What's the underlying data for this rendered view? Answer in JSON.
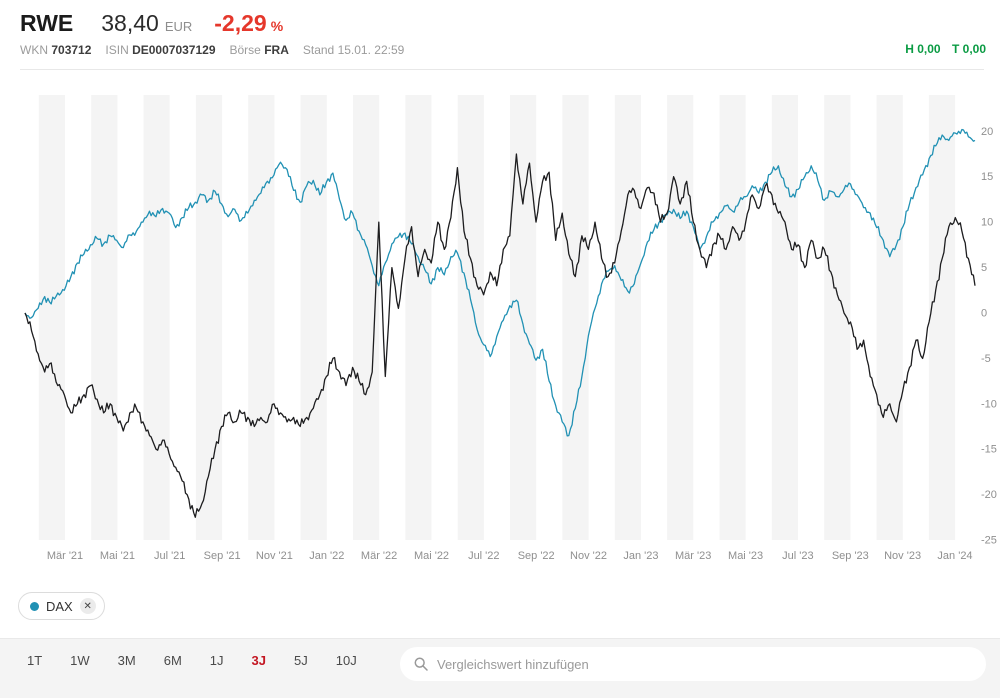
{
  "header": {
    "symbol": "RWE",
    "price": "38,40",
    "currency": "EUR",
    "change_percent": "-2,29",
    "percent_sign": "%",
    "wkn_label": "WKN",
    "wkn": "703712",
    "isin_label": "ISIN",
    "isin": "DE0007037129",
    "boerse_label": "Börse",
    "boerse": "FRA",
    "stand": "Stand 15.01. 22:59",
    "high_label": "H",
    "high": "0,00",
    "low_label": "T",
    "low": "0,00"
  },
  "colors": {
    "rwe_line": "#1d1d1f",
    "dax_line": "#2191b4",
    "change_red": "#e5372b",
    "active_range_red": "#c31622",
    "high_low_green": "#0a9b43",
    "stripe": "#f4f4f4",
    "tick_gray": "#8f8f8f"
  },
  "legend": {
    "dax_label": "DAX",
    "remove_glyph": "✕"
  },
  "toolbar": {
    "ranges": [
      "1T",
      "1W",
      "3M",
      "6M",
      "1J",
      "3J",
      "5J",
      "10J"
    ],
    "active_range": "3J",
    "search_placeholder": "Vergleichswert hinzufügen"
  },
  "chart_data": {
    "type": "line",
    "ylabel": "%",
    "ylim": [
      -25,
      24
    ],
    "yticks": [
      20,
      15,
      10,
      5,
      0,
      -5,
      -10,
      -15,
      -20,
      -25
    ],
    "grid": "vertical-month-stripes",
    "legend_position": "bottom-left-chip",
    "x_range": "mid-Jan 2021 to mid-Jan 2024",
    "x_tick_labels": [
      "Mär '21",
      "Mai '21",
      "Jul '21",
      "Sep '21",
      "Nov '21",
      "Jan '22",
      "Mär '22",
      "Mai '22",
      "Jul '22",
      "Sep '22",
      "Nov '22",
      "Jan '23",
      "Mär '23",
      "Mai '23",
      "Jul '23",
      "Sep '23",
      "Nov '23",
      "Jan '24"
    ],
    "series": [
      {
        "name": "RWE",
        "color": "#1d1d1f",
        "unit": "percent",
        "values": [
          0,
          -2.0,
          -4.5,
          -6.5,
          -5.5,
          -8.0,
          -9.0,
          -11.0,
          -10.0,
          -9.0,
          -8.0,
          -9.5,
          -11.0,
          -10.0,
          -11.5,
          -13.0,
          -11.0,
          -10.5,
          -12.0,
          -13.5,
          -15.0,
          -14.0,
          -15.5,
          -17.0,
          -18.5,
          -20.5,
          -22.5,
          -21.0,
          -18.0,
          -15.0,
          -12.5,
          -11.0,
          -12.0,
          -11.0,
          -11.5,
          -12.5,
          -11.5,
          -12.0,
          -10.0,
          -11.0,
          -12.0,
          -11.5,
          -12.5,
          -11.5,
          -10.5,
          -9.0,
          -7.0,
          -5.0,
          -6.5,
          -8.0,
          -6.0,
          -7.5,
          -9.0,
          -6.5,
          10.0,
          -7.0,
          5.0,
          0.5,
          6.0,
          9.5,
          4.0,
          7.0,
          5.5,
          10.0,
          7.0,
          10.5,
          16.0,
          9.0,
          6.0,
          3.0,
          2.0,
          4.5,
          3.0,
          7.0,
          8.5,
          17.5,
          12.0,
          16.5,
          10.0,
          14.5,
          15.5,
          8.0,
          11.0,
          6.5,
          4.0,
          8.5,
          7.0,
          10.0,
          6.0,
          4.0,
          5.5,
          9.0,
          13.0,
          13.5,
          11.5,
          13.8,
          13.2,
          10.0,
          11.0,
          15.0,
          12.0,
          14.5,
          10.0,
          7.0,
          5.0,
          7.5,
          8.5,
          7.0,
          9.5,
          8.0,
          10.0,
          13.0,
          11.5,
          14.0,
          13.0,
          11.0,
          10.0,
          7.0,
          7.5,
          5.0,
          8.0,
          6.0,
          7.0,
          4.5,
          2.0,
          0.0,
          -1.0,
          -4.0,
          -3.0,
          -7.0,
          -9.0,
          -11.5,
          -10.0,
          -12.0,
          -8.5,
          -6.0,
          -3.0,
          -5.0,
          -1.0,
          2.5,
          6.0,
          9.5,
          10.5,
          9.0,
          6.0,
          3.0
        ]
      },
      {
        "name": "DAX",
        "color": "#2191b4",
        "unit": "percent",
        "values": [
          0,
          -0.5,
          0.5,
          1.8,
          1.0,
          2.2,
          2.5,
          4.0,
          5.5,
          6.5,
          7.5,
          8.2,
          7.6,
          8.5,
          8.0,
          7.2,
          8.6,
          9.0,
          10.0,
          11.2,
          10.6,
          11.5,
          11.0,
          9.4,
          10.5,
          11.6,
          12.2,
          13.0,
          12.4,
          13.4,
          12.0,
          10.6,
          11.4,
          10.2,
          11.0,
          12.4,
          13.2,
          14.5,
          15.2,
          16.6,
          15.8,
          13.5,
          12.2,
          14.0,
          14.6,
          13.0,
          14.4,
          15.4,
          12.5,
          10.2,
          11.0,
          9.0,
          7.5,
          5.2,
          3.0,
          5.5,
          7.6,
          8.4,
          8.8,
          7.6,
          6.2,
          4.8,
          3.2,
          5.0,
          4.2,
          6.2,
          6.6,
          4.4,
          1.5,
          -1.8,
          -3.5,
          -4.8,
          -2.6,
          -0.8,
          0.8,
          1.4,
          -1.2,
          -3.4,
          -5.2,
          -4.0,
          -7.5,
          -10.2,
          -12.0,
          -13.5,
          -10.5,
          -7.0,
          -2.5,
          0.5,
          3.2,
          4.6,
          5.2,
          3.6,
          2.4,
          3.2,
          5.5,
          7.8,
          9.2,
          10.2,
          10.8,
          11.4,
          10.4,
          11.2,
          9.5,
          7.0,
          8.4,
          10.0,
          11.0,
          11.8,
          11.2,
          12.2,
          12.8,
          14.0,
          13.2,
          14.4,
          15.5,
          16.2,
          14.0,
          12.8,
          13.6,
          15.0,
          16.2,
          14.6,
          12.4,
          13.4,
          12.8,
          13.6,
          14.2,
          13.0,
          11.6,
          11.0,
          9.4,
          8.0,
          6.2,
          7.5,
          9.5,
          12.0,
          13.8,
          15.2,
          17.0,
          18.4,
          19.6,
          19.0,
          19.8,
          20.2,
          19.4,
          19.0
        ]
      }
    ]
  }
}
